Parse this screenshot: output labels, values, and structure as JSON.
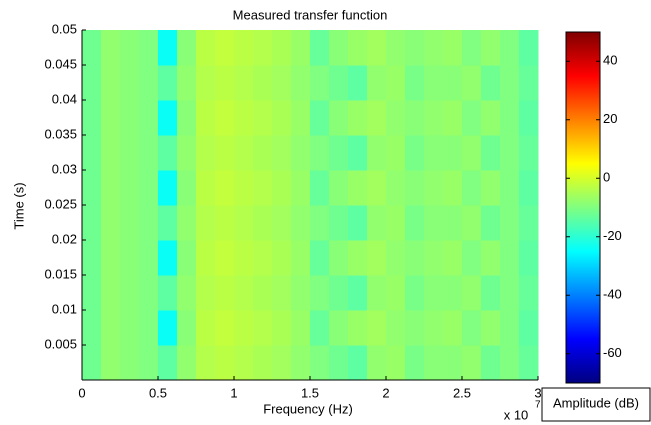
{
  "chart_data": {
    "type": "heatmap",
    "title": "Measured transfer function",
    "x_label": "Frequency (Hz)",
    "y_label": "Time (s)",
    "x_multiplier": "x 10",
    "x_multiplier_exponent": "7",
    "colorbar_label": "Amplitude (dB)",
    "colormap": "jet",
    "xbins": [
      0,
      0.125,
      0.25,
      0.375,
      0.5,
      0.625,
      0.75,
      0.875,
      1,
      1.125,
      1.25,
      1.375,
      1.5,
      1.625,
      1.75,
      1.875,
      2,
      2.125,
      2.25,
      2.375,
      2.5,
      2.625,
      2.75,
      2.875,
      3
    ],
    "ybins": [
      0,
      0.005,
      0.01,
      0.015,
      0.02,
      0.025,
      0.03,
      0.035,
      0.04,
      0.045,
      0.05
    ],
    "z": [
      [
        -12,
        -8,
        -9,
        -10,
        -14,
        -8,
        -4,
        -3,
        -4,
        -5,
        -6,
        -8,
        -10,
        -12,
        -14,
        -8,
        -7,
        -11,
        -9,
        -9,
        -8,
        -12,
        -10,
        -13
      ],
      [
        -12,
        -8,
        -9,
        -10,
        -24,
        -9,
        -3,
        -2,
        -3,
        -4,
        -5,
        -7,
        -13,
        -9,
        -7,
        -6,
        -8,
        -9,
        -8,
        -7,
        -10,
        -8,
        -10,
        -14
      ],
      [
        -12,
        -8,
        -9,
        -10,
        -14,
        -8,
        -4,
        -3,
        -4,
        -5,
        -6,
        -8,
        -10,
        -12,
        -14,
        -8,
        -7,
        -11,
        -9,
        -9,
        -8,
        -12,
        -10,
        -13
      ],
      [
        -12,
        -8,
        -9,
        -10,
        -24,
        -9,
        -3,
        -2,
        -3,
        -4,
        -5,
        -7,
        -13,
        -9,
        -7,
        -6,
        -8,
        -9,
        -8,
        -7,
        -10,
        -8,
        -10,
        -14
      ],
      [
        -12,
        -8,
        -9,
        -10,
        -14,
        -8,
        -4,
        -3,
        -4,
        -5,
        -6,
        -8,
        -10,
        -12,
        -14,
        -8,
        -7,
        -11,
        -9,
        -9,
        -8,
        -12,
        -10,
        -13
      ],
      [
        -12,
        -8,
        -9,
        -10,
        -24,
        -9,
        -3,
        -2,
        -3,
        -4,
        -5,
        -7,
        -13,
        -9,
        -7,
        -6,
        -8,
        -9,
        -8,
        -7,
        -10,
        -8,
        -10,
        -14
      ],
      [
        -12,
        -8,
        -9,
        -10,
        -14,
        -8,
        -4,
        -3,
        -4,
        -5,
        -6,
        -8,
        -10,
        -12,
        -14,
        -8,
        -7,
        -11,
        -9,
        -9,
        -8,
        -12,
        -10,
        -13
      ],
      [
        -12,
        -8,
        -9,
        -10,
        -24,
        -9,
        -3,
        -2,
        -3,
        -4,
        -5,
        -7,
        -13,
        -9,
        -7,
        -6,
        -8,
        -9,
        -8,
        -7,
        -10,
        -8,
        -10,
        -14
      ],
      [
        -12,
        -8,
        -9,
        -10,
        -14,
        -8,
        -4,
        -3,
        -4,
        -5,
        -6,
        -8,
        -10,
        -12,
        -14,
        -8,
        -7,
        -11,
        -9,
        -9,
        -8,
        -12,
        -10,
        -13
      ],
      [
        -12,
        -8,
        -9,
        -10,
        -24,
        -9,
        -3,
        -2,
        -3,
        -4,
        -5,
        -7,
        -13,
        -9,
        -7,
        -6,
        -8,
        -9,
        -8,
        -7,
        -10,
        -8,
        -10,
        -14
      ]
    ],
    "xlim": [
      0,
      3
    ],
    "xticks": [
      0,
      0.5,
      1,
      1.5,
      2,
      2.5,
      3
    ],
    "ylim": [
      0,
      0.05
    ],
    "yticks": [
      0.005,
      0.01,
      0.015,
      0.02,
      0.025,
      0.03,
      0.035,
      0.04,
      0.045,
      0.05
    ],
    "clim": [
      -70,
      50
    ],
    "cticks": [
      -60,
      -40,
      -20,
      0,
      20,
      40
    ]
  }
}
